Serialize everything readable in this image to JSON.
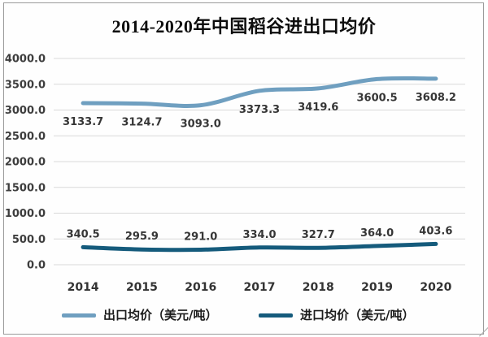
{
  "chart_data": {
    "type": "line",
    "title": "2014-2020年中国稻谷进出口均价",
    "categories": [
      "2014",
      "2015",
      "2016",
      "2017",
      "2018",
      "2019",
      "2020"
    ],
    "series": [
      {
        "name": "出口均价（美元/吨）",
        "values": [
          3133.7,
          3124.7,
          3093.0,
          3373.3,
          3419.6,
          3600.5,
          3608.2
        ],
        "color": "#6f9fc0",
        "label_position": "below"
      },
      {
        "name": "进口均价（美元/吨）",
        "values": [
          340.5,
          295.9,
          291.0,
          334.0,
          327.7,
          364.0,
          403.6
        ],
        "color": "#155b7c",
        "label_position": "above"
      }
    ],
    "xlabel": "",
    "ylabel": "",
    "ylim": [
      0,
      4000
    ],
    "ytick_labels": [
      "0.0",
      "500.0",
      "1000.0",
      "1500.0",
      "2000.0",
      "2500.0",
      "3000.0",
      "3500.0",
      "4000.0"
    ],
    "grid": true,
    "legend_position": "bottom"
  }
}
